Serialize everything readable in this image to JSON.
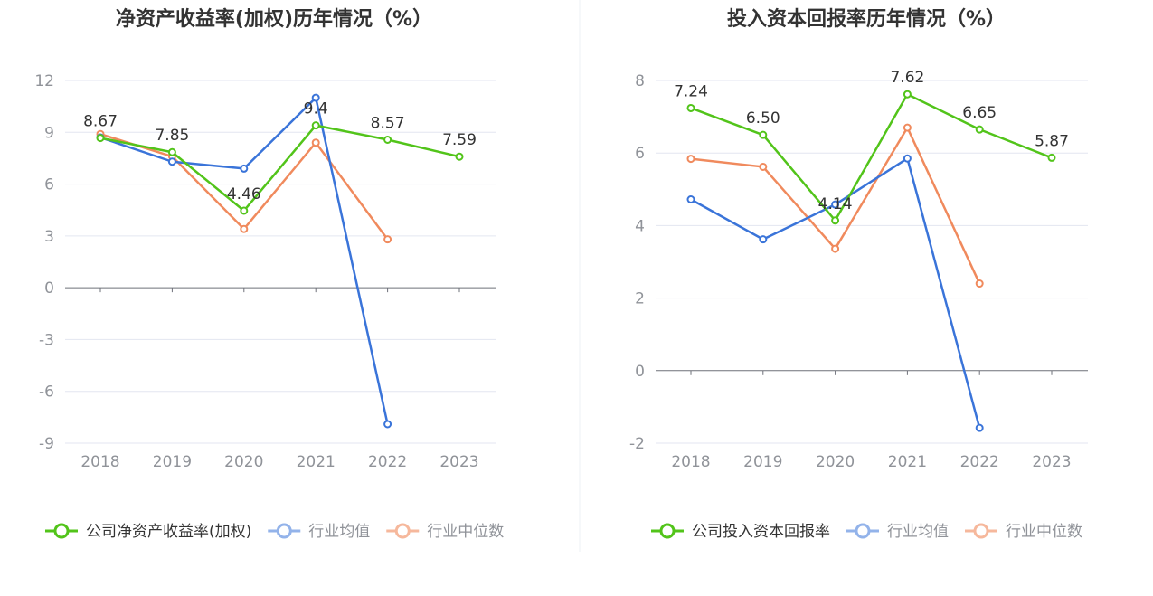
{
  "colors": {
    "company": "#52c41a",
    "avg": "#3a74d9",
    "median": "#f08a5d",
    "avg_legend": "#93b3ea",
    "median_legend": "#f6b89c",
    "axis_text": "#909399",
    "grid": "#e3e6f0",
    "axis_line": "#6e7079",
    "title": "#333333",
    "label": "#333333"
  },
  "chart_data": [
    {
      "type": "line",
      "title": "净资产收益率(加权)历年情况（%）",
      "categories": [
        "2018",
        "2019",
        "2020",
        "2021",
        "2022",
        "2023"
      ],
      "yticks": [
        "12",
        "9",
        "6",
        "3",
        "0",
        "-3",
        "-6",
        "-9"
      ],
      "ylim": [
        -9,
        12
      ],
      "grid": true,
      "legend_position": "bottom",
      "series": [
        {
          "name": "公司净资产收益率(加权)",
          "key": "company",
          "values": [
            8.67,
            7.85,
            4.46,
            9.4,
            8.57,
            7.59
          ],
          "labels": [
            "8.67",
            "7.85",
            "4.46",
            "9.4",
            "8.57",
            "7.59"
          ]
        },
        {
          "name": "行业均值",
          "key": "avg",
          "values": [
            8.7,
            7.3,
            6.9,
            11.0,
            -7.9,
            null
          ]
        },
        {
          "name": "行业中位数",
          "key": "median",
          "values": [
            8.9,
            7.6,
            3.4,
            8.4,
            2.8,
            null
          ]
        }
      ]
    },
    {
      "type": "line",
      "title": "投入资本回报率历年情况（%）",
      "categories": [
        "2018",
        "2019",
        "2020",
        "2021",
        "2022",
        "2023"
      ],
      "yticks": [
        "8",
        "6",
        "4",
        "2",
        "0",
        "-2"
      ],
      "ylim": [
        -2,
        8
      ],
      "grid": true,
      "legend_position": "bottom",
      "series": [
        {
          "name": "公司投入资本回报率",
          "key": "company",
          "values": [
            7.24,
            6.5,
            4.14,
            7.62,
            6.65,
            5.87
          ],
          "labels": [
            "7.24",
            "6.50",
            "4.14",
            "7.62",
            "6.65",
            "5.87"
          ]
        },
        {
          "name": "行业均值",
          "key": "avg",
          "values": [
            4.72,
            3.62,
            4.58,
            5.85,
            -1.58,
            null
          ]
        },
        {
          "name": "行业中位数",
          "key": "median",
          "values": [
            5.84,
            5.62,
            3.36,
            6.7,
            2.4,
            null
          ]
        }
      ]
    }
  ]
}
